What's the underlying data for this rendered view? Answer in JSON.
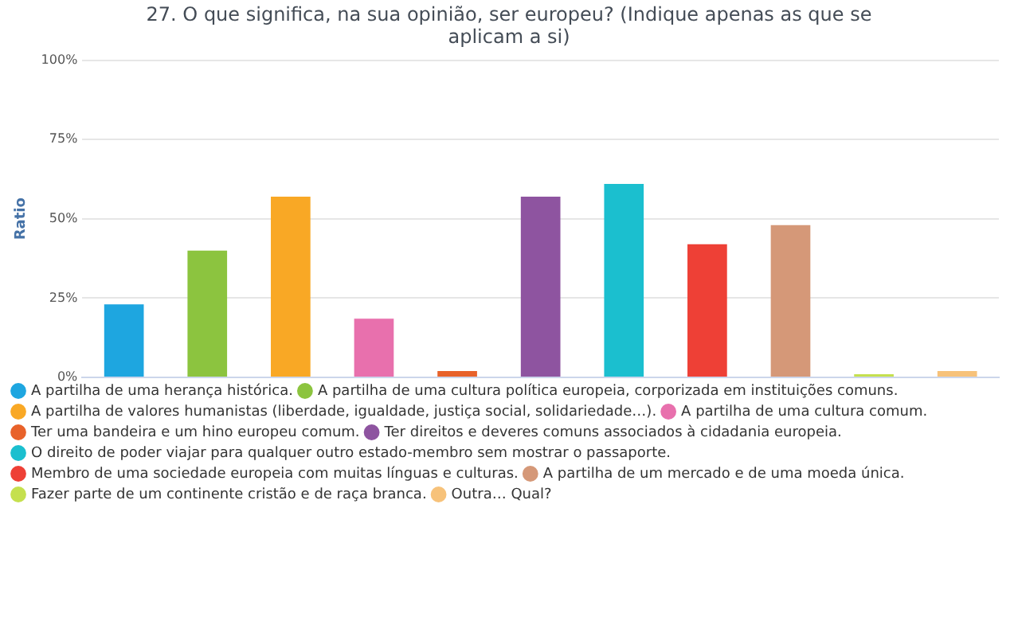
{
  "chart_data": {
    "type": "bar",
    "title": "27. O que significa, na sua opinião, ser europeu? (Indique apenas as que se aplicam a si)",
    "ylabel": "Ratio",
    "categories": [
      null,
      null,
      null,
      null,
      null,
      null,
      null,
      null,
      null,
      null,
      null
    ],
    "series": [
      {
        "name": "A partilha de uma herança histórica.",
        "color": "#1ea6e0",
        "values": [
          23,
          null,
          null,
          null,
          null,
          null,
          null,
          null,
          null,
          null,
          null
        ]
      },
      {
        "name": "A partilha de uma cultura política europeia, corporizada em instituições comuns.",
        "color": "#8cc43f",
        "values": [
          null,
          40,
          null,
          null,
          null,
          null,
          null,
          null,
          null,
          null,
          null
        ]
      },
      {
        "name": "A partilha de valores humanistas (liberdade, igualdade, justiça social, solidariedade…).",
        "color": "#f9a825",
        "values": [
          null,
          null,
          57,
          null,
          null,
          null,
          null,
          null,
          null,
          null,
          null
        ]
      },
      {
        "name": "A partilha de uma cultura comum.",
        "color": "#e870ad",
        "values": [
          null,
          null,
          null,
          18.5,
          null,
          null,
          null,
          null,
          null,
          null,
          null
        ]
      },
      {
        "name": "Ter uma bandeira e um hino europeu comum.",
        "color": "#e8622a",
        "values": [
          null,
          null,
          null,
          null,
          2,
          null,
          null,
          null,
          null,
          null,
          null
        ]
      },
      {
        "name": "Ter direitos e deveres comuns associados à cidadania europeia.",
        "color": "#8e54a0",
        "values": [
          null,
          null,
          null,
          null,
          null,
          57,
          null,
          null,
          null,
          null,
          null
        ]
      },
      {
        "name": "O direito de poder viajar para qualquer outro estado-membro sem mostrar o passaporte.",
        "color": "#1bbfcf",
        "values": [
          null,
          null,
          null,
          null,
          null,
          null,
          61,
          null,
          null,
          null,
          null
        ]
      },
      {
        "name": "Membro de uma sociedade europeia com muitas línguas e culturas.",
        "color": "#ee4036",
        "values": [
          null,
          null,
          null,
          null,
          null,
          null,
          null,
          42,
          null,
          null,
          null
        ]
      },
      {
        "name": "A partilha de um mercado e de uma moeda única.",
        "color": "#d59878",
        "values": [
          null,
          null,
          null,
          null,
          null,
          null,
          null,
          null,
          48,
          null,
          null
        ]
      },
      {
        "name": "Fazer parte de um continente cristão e de raça branca.",
        "color": "#c5e04e",
        "values": [
          null,
          null,
          null,
          null,
          null,
          null,
          null,
          null,
          null,
          1,
          null
        ]
      },
      {
        "name": "Outra… Qual?",
        "color": "#f7c27a",
        "values": [
          null,
          null,
          null,
          null,
          null,
          null,
          null,
          null,
          null,
          null,
          2
        ]
      }
    ],
    "ylim": [
      0,
      100
    ],
    "yticks": [
      {
        "value": 0,
        "label": "0%"
      },
      {
        "value": 25,
        "label": "25%"
      },
      {
        "value": 50,
        "label": "50%"
      },
      {
        "value": 75,
        "label": "75%"
      },
      {
        "value": 100,
        "label": "100%"
      }
    ],
    "grid": "y",
    "legend": "bottom",
    "tick_labels": "y"
  }
}
